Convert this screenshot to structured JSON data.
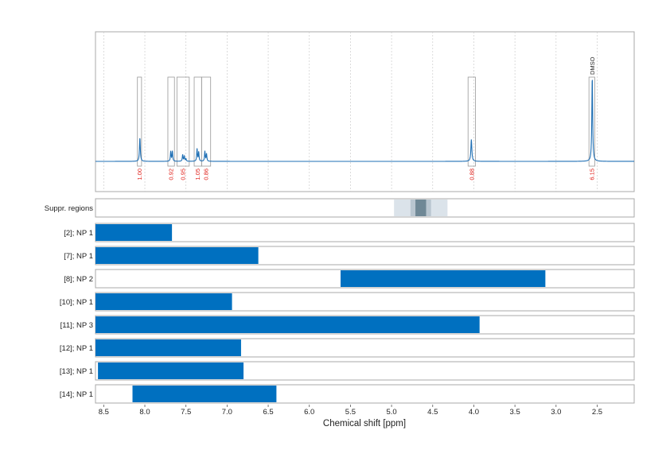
{
  "chart_data": {
    "type": "nmr-spectrum-with-ranges",
    "xlabel": "Chemical shift [ppm]",
    "xlim": [
      8.6,
      2.05
    ],
    "x_ticks": [
      8.5,
      8.0,
      7.5,
      7.0,
      6.5,
      6.0,
      5.5,
      5.0,
      4.5,
      4.0,
      3.5,
      3.0,
      2.5
    ],
    "x_tick_labels": [
      "8.5",
      "8.0",
      "7.5",
      "7.0",
      "6.5",
      "6.0",
      "5.5",
      "5.0",
      "4.5",
      "4.0",
      "3.5",
      "3.0",
      "2.5"
    ],
    "spectrum": {
      "color": "#1f6fb4",
      "baseline": 0.0,
      "peaks": [
        {
          "ppm": 8.06,
          "height": 0.28,
          "width": 0.006
        },
        {
          "ppm": 7.685,
          "height": 0.12,
          "width": 0.005
        },
        {
          "ppm": 7.665,
          "height": 0.12,
          "width": 0.005
        },
        {
          "ppm": 7.54,
          "height": 0.08,
          "width": 0.005
        },
        {
          "ppm": 7.52,
          "height": 0.06,
          "width": 0.005
        },
        {
          "ppm": 7.5,
          "height": 0.03,
          "width": 0.005
        },
        {
          "ppm": 7.365,
          "height": 0.15,
          "width": 0.005
        },
        {
          "ppm": 7.345,
          "height": 0.11,
          "width": 0.005
        },
        {
          "ppm": 7.27,
          "height": 0.12,
          "width": 0.005
        },
        {
          "ppm": 7.25,
          "height": 0.09,
          "width": 0.005
        },
        {
          "ppm": 4.03,
          "height": 0.26,
          "width": 0.007
        },
        {
          "ppm": 2.56,
          "height": 1.0,
          "width": 0.006
        }
      ]
    },
    "integrals": [
      {
        "from": 8.09,
        "to": 8.04,
        "label": "1.00"
      },
      {
        "from": 7.72,
        "to": 7.64,
        "label": "0.92"
      },
      {
        "from": 7.61,
        "to": 7.46,
        "label": "0.95"
      },
      {
        "from": 7.4,
        "to": 7.31,
        "label": "1.05"
      },
      {
        "from": 7.31,
        "to": 7.2,
        "label": "0.86"
      },
      {
        "from": 4.07,
        "to": 3.98,
        "label": "0.88"
      },
      {
        "from": 2.6,
        "to": 2.53,
        "label": "6.15"
      }
    ],
    "peak_annotations": [
      {
        "ppm": 2.56,
        "text": "DMSO"
      }
    ],
    "suppression": {
      "label": "Suppr. regions",
      "regions": [
        {
          "from": 4.97,
          "to": 4.32,
          "shade": "#dbe3ea"
        },
        {
          "from": 4.77,
          "to": 4.52,
          "shade": "#b9c6d0"
        },
        {
          "from": 4.71,
          "to": 4.58,
          "shade": "#6f8896"
        }
      ]
    },
    "rows": [
      {
        "label": "[2]; NP 1",
        "from": 8.6,
        "to": 7.67
      },
      {
        "label": "[7]; NP 1",
        "from": 8.6,
        "to": 6.62
      },
      {
        "label": "[8]; NP 2",
        "from": 5.62,
        "to": 3.13
      },
      {
        "label": "[10]; NP 1",
        "from": 8.6,
        "to": 6.94
      },
      {
        "label": "[11]; NP 3",
        "from": 8.6,
        "to": 3.93
      },
      {
        "label": "[12]; NP 1",
        "from": 8.6,
        "to": 6.83
      },
      {
        "label": "[13]; NP 1",
        "from": 8.57,
        "to": 6.8
      },
      {
        "label": "[14]; NP 1",
        "from": 8.15,
        "to": 6.4
      }
    ],
    "bar_color": "#0070c0",
    "grid": true
  }
}
